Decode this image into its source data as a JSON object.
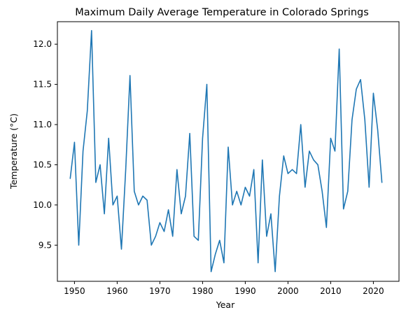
{
  "chart_data": {
    "type": "line",
    "title": "Maximum Daily Average Temperature in Colorado Springs",
    "xlabel": "Year",
    "ylabel": "Temperature (°C)",
    "xlim": [
      1946,
      2026
    ],
    "ylim": [
      9.05,
      12.28
    ],
    "xticks": [
      1950,
      1960,
      1970,
      1980,
      1990,
      2000,
      2010,
      2020
    ],
    "yticks": [
      9.5,
      10.0,
      10.5,
      11.0,
      11.5,
      12.0
    ],
    "xtick_labels": [
      "1950",
      "1960",
      "1970",
      "1980",
      "1990",
      "2000",
      "2010",
      "2020"
    ],
    "ytick_labels": [
      "9.5",
      "10.0",
      "10.5",
      "11.0",
      "11.5",
      "12.0"
    ],
    "line_color": "#1f77b4",
    "grid": false,
    "series": [
      {
        "x": [
          1949,
          1950,
          1951,
          1952,
          1953,
          1954,
          1955,
          1956,
          1957,
          1958,
          1959,
          1960,
          1961,
          1962,
          1963,
          1964,
          1965,
          1966,
          1967,
          1968,
          1969,
          1970,
          1971,
          1972,
          1973,
          1974,
          1975,
          1976,
          1977,
          1978,
          1979,
          1980,
          1981,
          1982,
          1983,
          1984,
          1985,
          1986,
          1987,
          1988,
          1989,
          1990,
          1991,
          1992,
          1993,
          1994,
          1995,
          1996,
          1997,
          1998,
          1999,
          2000,
          2001,
          2002,
          2003,
          2004,
          2005,
          2006,
          2007,
          2008,
          2009,
          2010,
          2011,
          2012,
          2013,
          2014,
          2015,
          2016,
          2017,
          2018,
          2019,
          2020,
          2021,
          2022
        ],
        "y": [
          10.33,
          10.78,
          9.5,
          10.67,
          11.17,
          12.17,
          10.28,
          10.5,
          9.89,
          10.83,
          10.0,
          10.11,
          9.45,
          10.44,
          11.61,
          10.17,
          10.0,
          10.11,
          10.06,
          9.5,
          9.61,
          9.78,
          9.67,
          9.94,
          9.61,
          10.44,
          9.89,
          10.11,
          10.89,
          9.61,
          9.56,
          10.83,
          11.5,
          9.17,
          9.39,
          9.56,
          9.28,
          10.72,
          10.0,
          10.17,
          10.0,
          10.22,
          10.11,
          10.44,
          9.28,
          10.56,
          9.61,
          9.89,
          9.17,
          10.11,
          10.61,
          10.39,
          10.44,
          10.39,
          11.0,
          10.22,
          10.67,
          10.56,
          10.5,
          10.17,
          9.72,
          10.83,
          10.67,
          11.94,
          9.95,
          10.17,
          11.06,
          11.44,
          11.56,
          11.06,
          10.22,
          11.39,
          10.94,
          10.28
        ]
      }
    ]
  }
}
